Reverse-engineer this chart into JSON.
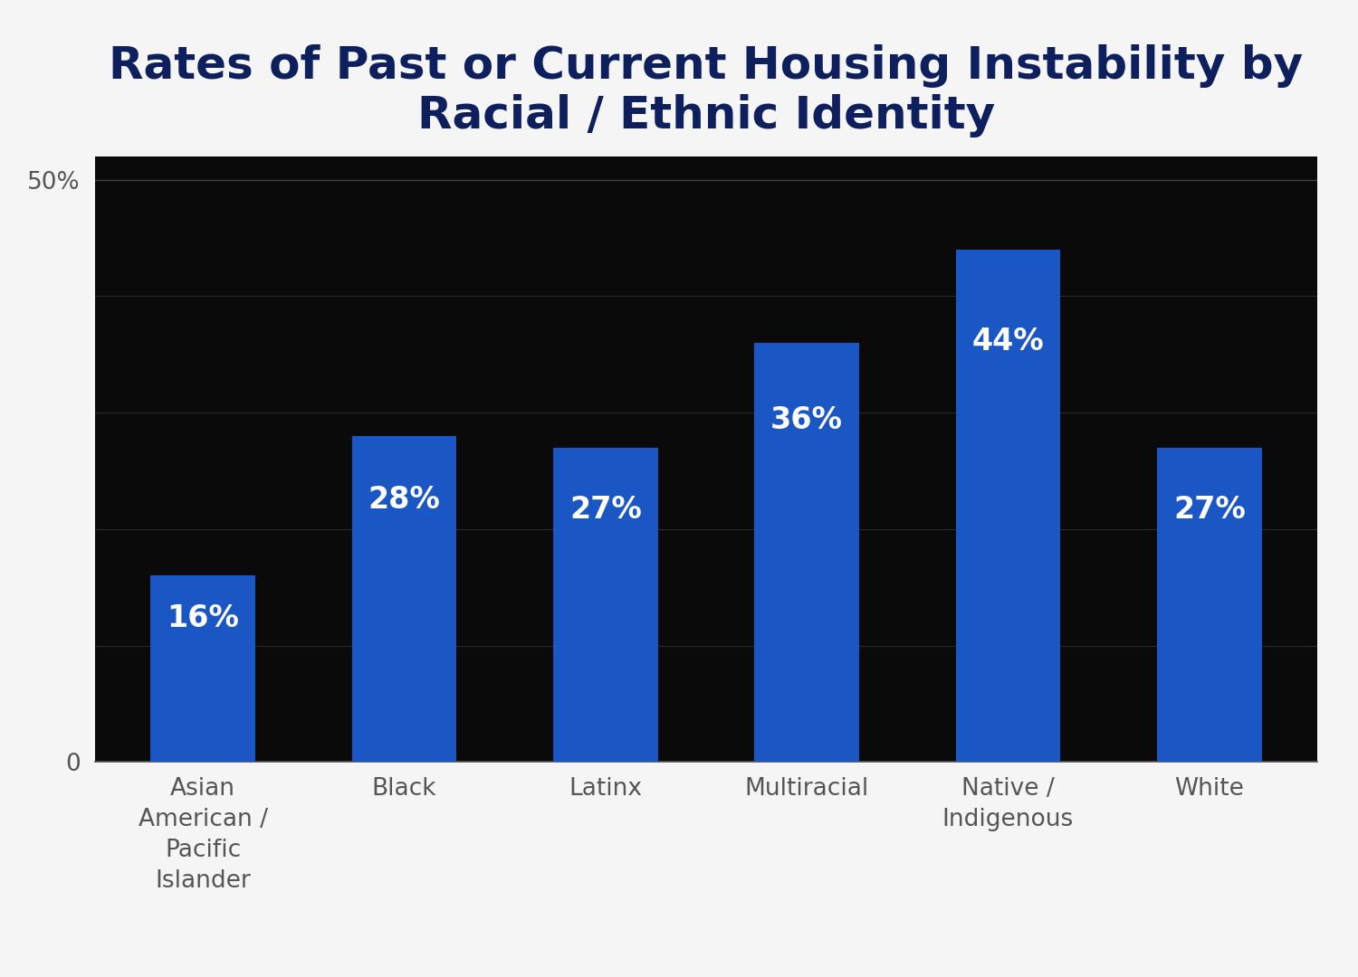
{
  "title": "Rates of Past or Current Housing Instability by\nRacial / Ethnic Identity",
  "categories": [
    "Asian\nAmerican /\nPacific\nIslander",
    "Black",
    "Latinx",
    "Multiracial",
    "Native /\nIndigenous",
    "White"
  ],
  "values": [
    16,
    28,
    27,
    36,
    44,
    27
  ],
  "labels": [
    "16%",
    "28%",
    "27%",
    "36%",
    "44%",
    "27%"
  ],
  "bar_color": "#1a56c4",
  "background_color": "#f5f5f5",
  "plot_bg_color": "#0a0a0a",
  "title_color": "#0d1f5c",
  "tick_label_color": "#555555",
  "ylim": [
    0,
    52
  ],
  "yticks": [
    0,
    50
  ],
  "ytick_labels": [
    "0",
    "50%"
  ],
  "grid_color": "#444444",
  "label_font_color": "#ffffff",
  "title_fontsize": 36,
  "bar_label_fontsize": 24,
  "tick_fontsize": 19,
  "xlabel_fontsize": 19
}
